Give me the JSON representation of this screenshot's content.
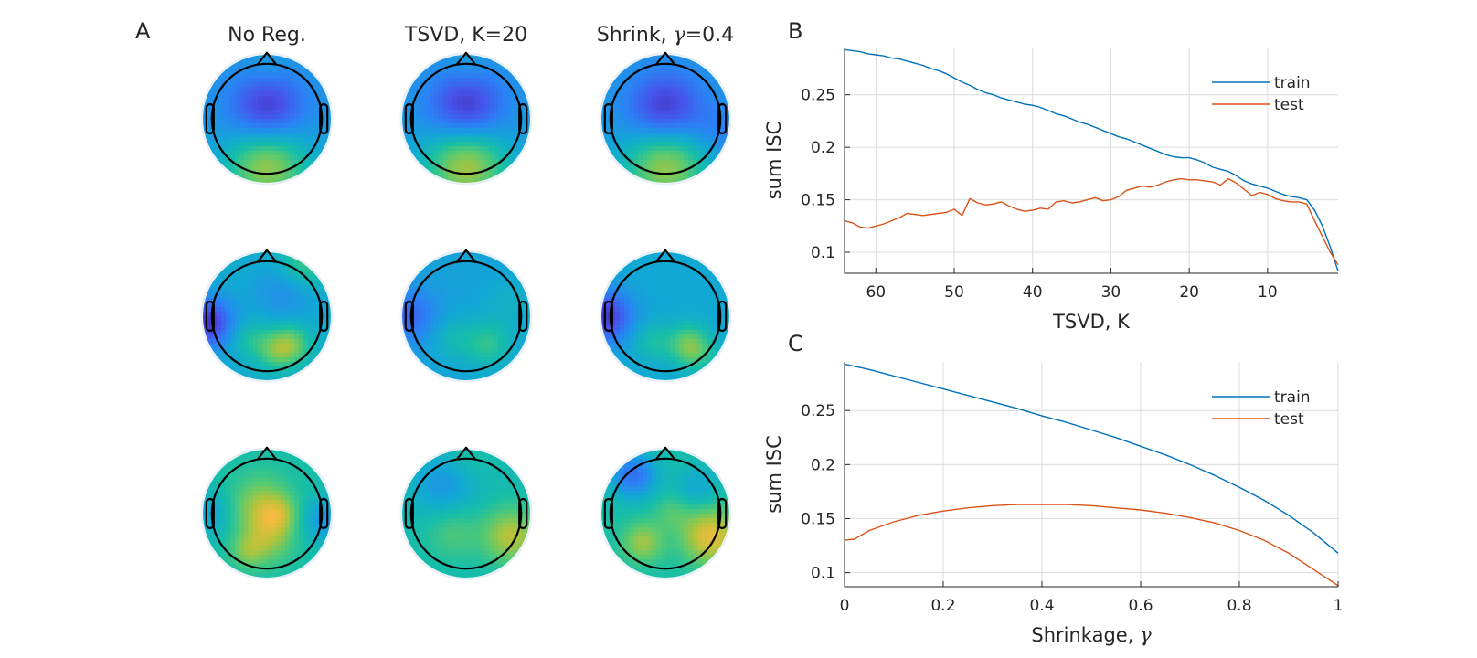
{
  "panel_a": {
    "letter": "A",
    "columns": [
      {
        "title": "No Reg."
      },
      {
        "title": "TSVD, K=20"
      },
      {
        "title_prefix": "Shrink, ",
        "title_symbol": "γ",
        "title_suffix": "=0.4"
      }
    ],
    "rows": 3,
    "colormap": "parula",
    "topomaps": [
      [
        {
          "base": 0.33,
          "blobs": [
            [
              0,
              -0.12,
              0.42,
              -0.3
            ],
            [
              0,
              0.72,
              0.45,
              0.4
            ],
            [
              0,
              -0.85,
              0.25,
              0.05
            ]
          ]
        },
        {
          "base": 0.33,
          "blobs": [
            [
              0,
              -0.15,
              0.42,
              -0.3
            ],
            [
              0,
              0.72,
              0.45,
              0.42
            ],
            [
              0,
              -0.85,
              0.25,
              0.05
            ]
          ]
        },
        {
          "base": 0.33,
          "blobs": [
            [
              0,
              -0.12,
              0.42,
              -0.3
            ],
            [
              0,
              0.72,
              0.45,
              0.4
            ],
            [
              0.85,
              0.2,
              0.3,
              -0.08
            ]
          ]
        }
      ],
      [
        {
          "base": 0.4,
          "blobs": [
            [
              -0.92,
              0.1,
              0.28,
              -0.35
            ],
            [
              0.35,
              0.45,
              0.22,
              0.28
            ],
            [
              0.1,
              0.55,
              0.2,
              0.15
            ],
            [
              -0.25,
              0.35,
              0.2,
              0.12
            ],
            [
              0.3,
              -0.4,
              0.35,
              -0.12
            ],
            [
              0.6,
              -0.85,
              0.3,
              0.2
            ]
          ]
        },
        {
          "base": 0.36,
          "blobs": [
            [
              -0.88,
              0.0,
              0.3,
              -0.18
            ],
            [
              0.35,
              0.45,
              0.25,
              0.18
            ],
            [
              -0.2,
              0.35,
              0.25,
              0.1
            ],
            [
              0.7,
              -0.2,
              0.3,
              0.06
            ]
          ]
        },
        {
          "base": 0.38,
          "blobs": [
            [
              -0.92,
              0.0,
              0.28,
              -0.32
            ],
            [
              0.35,
              0.45,
              0.22,
              0.26
            ],
            [
              -0.2,
              0.4,
              0.2,
              0.12
            ],
            [
              0.55,
              0.6,
              0.2,
              0.1
            ]
          ]
        }
      ],
      [
        {
          "base": 0.5,
          "blobs": [
            [
              -0.1,
              -0.15,
              0.3,
              0.2
            ],
            [
              0.0,
              0.35,
              0.28,
              0.22
            ],
            [
              -0.3,
              0.6,
              0.18,
              0.14
            ],
            [
              0.2,
              0.0,
              0.2,
              0.16
            ],
            [
              0.9,
              0.1,
              0.25,
              -0.18
            ],
            [
              -0.9,
              0.0,
              0.25,
              -0.12
            ]
          ]
        },
        {
          "base": 0.48,
          "blobs": [
            [
              -0.35,
              -0.45,
              0.35,
              -0.16
            ],
            [
              0.7,
              0.35,
              0.3,
              0.28
            ],
            [
              -0.2,
              0.3,
              0.3,
              0.12
            ],
            [
              0.0,
              -0.85,
              0.25,
              0.05
            ]
          ]
        },
        {
          "base": 0.5,
          "blobs": [
            [
              -0.5,
              -0.6,
              0.25,
              -0.3
            ],
            [
              0.7,
              0.35,
              0.3,
              0.35
            ],
            [
              -0.35,
              0.45,
              0.22,
              0.22
            ],
            [
              0.1,
              0.0,
              0.2,
              0.1
            ],
            [
              0.5,
              -0.4,
              0.25,
              -0.12
            ]
          ]
        }
      ]
    ]
  },
  "chart_data": [
    {
      "panel": "B",
      "type": "line",
      "xlabel": "TSVD, K",
      "ylabel": "sum ISC",
      "x_reversed": true,
      "xlim": [
        1,
        64
      ],
      "ylim": [
        0.08,
        0.295
      ],
      "xticks": [
        60,
        50,
        40,
        30,
        20,
        10
      ],
      "yticks": [
        0.1,
        0.15,
        0.2,
        0.25
      ],
      "grid": true,
      "legend": "top-right",
      "series": [
        {
          "name": "train",
          "color": "#0072BD",
          "x": [
            64,
            63,
            62,
            61,
            60,
            59,
            58,
            57,
            56,
            55,
            54,
            53,
            52,
            51,
            50,
            49,
            48,
            47,
            46,
            45,
            44,
            43,
            42,
            41,
            40,
            39,
            38,
            37,
            36,
            35,
            34,
            33,
            32,
            31,
            30,
            29,
            28,
            27,
            26,
            25,
            24,
            23,
            22,
            21,
            20,
            19,
            18,
            17,
            16,
            15,
            14,
            13,
            12,
            11,
            10,
            9,
            8,
            7,
            6,
            5,
            4,
            3,
            2,
            1
          ],
          "y": [
            0.293,
            0.292,
            0.291,
            0.289,
            0.288,
            0.287,
            0.285,
            0.284,
            0.282,
            0.28,
            0.278,
            0.275,
            0.273,
            0.27,
            0.266,
            0.262,
            0.259,
            0.255,
            0.252,
            0.25,
            0.247,
            0.245,
            0.243,
            0.241,
            0.24,
            0.238,
            0.235,
            0.232,
            0.23,
            0.227,
            0.224,
            0.222,
            0.219,
            0.216,
            0.213,
            0.21,
            0.208,
            0.205,
            0.202,
            0.199,
            0.196,
            0.193,
            0.191,
            0.19,
            0.19,
            0.188,
            0.185,
            0.181,
            0.179,
            0.177,
            0.173,
            0.168,
            0.165,
            0.163,
            0.161,
            0.158,
            0.155,
            0.153,
            0.152,
            0.15,
            0.14,
            0.125,
            0.105,
            0.082
          ]
        },
        {
          "name": "test",
          "color": "#D95319",
          "x": [
            64,
            63,
            62,
            61,
            60,
            59,
            58,
            57,
            56,
            55,
            54,
            53,
            52,
            51,
            50,
            49,
            48,
            47,
            46,
            45,
            44,
            43,
            42,
            41,
            40,
            39,
            38,
            37,
            36,
            35,
            34,
            33,
            32,
            31,
            30,
            29,
            28,
            27,
            26,
            25,
            24,
            23,
            22,
            21,
            20,
            19,
            18,
            17,
            16,
            15,
            14,
            13,
            12,
            11,
            10,
            9,
            8,
            7,
            6,
            5,
            4,
            3,
            2,
            1
          ],
          "y": [
            0.13,
            0.128,
            0.124,
            0.123,
            0.125,
            0.127,
            0.13,
            0.133,
            0.137,
            0.136,
            0.135,
            0.136,
            0.137,
            0.138,
            0.141,
            0.135,
            0.151,
            0.147,
            0.145,
            0.146,
            0.148,
            0.144,
            0.141,
            0.139,
            0.14,
            0.142,
            0.141,
            0.148,
            0.149,
            0.147,
            0.148,
            0.15,
            0.152,
            0.149,
            0.15,
            0.153,
            0.159,
            0.161,
            0.163,
            0.162,
            0.164,
            0.167,
            0.169,
            0.17,
            0.169,
            0.169,
            0.168,
            0.167,
            0.164,
            0.17,
            0.166,
            0.16,
            0.154,
            0.157,
            0.155,
            0.151,
            0.149,
            0.148,
            0.148,
            0.146,
            0.13,
            0.115,
            0.1,
            0.088
          ]
        }
      ]
    },
    {
      "panel": "C",
      "type": "line",
      "xlabel_prefix": "Shrinkage, ",
      "xlabel_symbol": "γ",
      "ylabel": "sum ISC",
      "xlim": [
        0,
        1
      ],
      "ylim": [
        0.087,
        0.295
      ],
      "xticks": [
        0,
        0.2,
        0.4,
        0.6,
        0.8,
        1
      ],
      "xtick_labels": [
        "0",
        "0.2",
        "0.4",
        "0.6",
        "0.8",
        "1"
      ],
      "yticks": [
        0.1,
        0.15,
        0.2,
        0.25
      ],
      "grid": true,
      "legend": "top-right",
      "series": [
        {
          "name": "train",
          "color": "#0072BD",
          "x": [
            0,
            0.05,
            0.1,
            0.15,
            0.2,
            0.25,
            0.3,
            0.35,
            0.4,
            0.45,
            0.5,
            0.55,
            0.6,
            0.65,
            0.7,
            0.75,
            0.8,
            0.85,
            0.9,
            0.95,
            1
          ],
          "y": [
            0.293,
            0.288,
            0.282,
            0.276,
            0.27,
            0.264,
            0.258,
            0.252,
            0.245,
            0.239,
            0.232,
            0.225,
            0.217,
            0.209,
            0.2,
            0.19,
            0.179,
            0.167,
            0.153,
            0.137,
            0.118
          ]
        },
        {
          "name": "test",
          "color": "#D95319",
          "x": [
            0,
            0.02,
            0.05,
            0.1,
            0.15,
            0.2,
            0.25,
            0.3,
            0.35,
            0.4,
            0.45,
            0.5,
            0.55,
            0.6,
            0.65,
            0.7,
            0.75,
            0.8,
            0.85,
            0.9,
            0.95,
            1
          ],
          "y": [
            0.13,
            0.131,
            0.139,
            0.147,
            0.153,
            0.157,
            0.16,
            0.162,
            0.163,
            0.163,
            0.163,
            0.162,
            0.16,
            0.158,
            0.155,
            0.151,
            0.146,
            0.139,
            0.13,
            0.118,
            0.103,
            0.088
          ]
        }
      ]
    }
  ]
}
